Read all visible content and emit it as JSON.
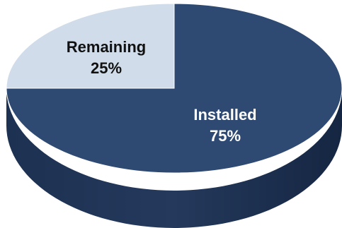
{
  "chart_data": {
    "type": "pie",
    "title": "",
    "slices": [
      {
        "label": "Remaining",
        "value": 25,
        "value_label": "25%",
        "color": "#d0dce9",
        "text_color": "#111111"
      },
      {
        "label": "Installed",
        "value": 75,
        "value_label": "75%",
        "color": "#2e4a72",
        "text_color": "#ffffff"
      }
    ],
    "style": "3d-tilted",
    "side_colors": {
      "Installed": "#1c3050",
      "Remaining": "#8fa0b5"
    }
  }
}
